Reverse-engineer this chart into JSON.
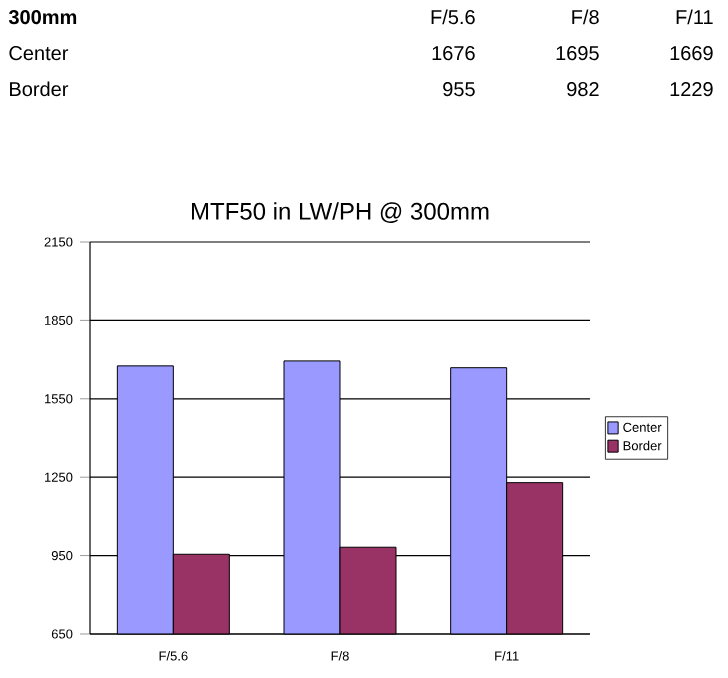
{
  "chart_data": [
    {
      "type": "other",
      "annotations": [
        "**300mm**",
        "F/5.6",
        "F/8",
        "F/11",
        "Center",
        "1676",
        "1695",
        "1669",
        "Border",
        "955",
        "982",
        "1229"
      ]
    },
    {
      "type": "bar",
      "title": "MTF50 in LW/PH @ 300mm",
      "categories": [
        "F/5.6",
        "F/8",
        "F/11"
      ],
      "series": [
        {
          "name": "Center",
          "color": "#9999ff",
          "values": [
            1676,
            1695,
            1669
          ]
        },
        {
          "name": "Border",
          "color": "#993366",
          "values": [
            955,
            982,
            1229
          ]
        }
      ],
      "ylim": [
        650,
        2150
      ],
      "yticks": [
        650,
        950,
        1250,
        1550,
        1850,
        2150
      ],
      "grid": "y",
      "legend": "right"
    }
  ]
}
